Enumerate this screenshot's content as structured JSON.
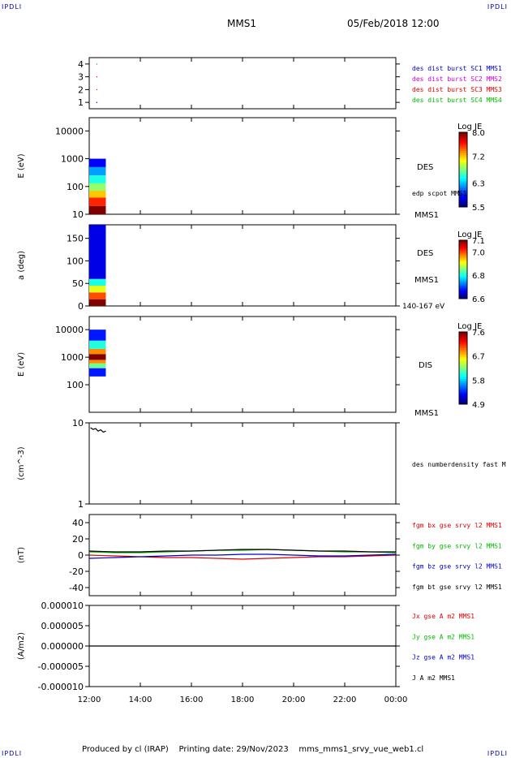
{
  "header": {
    "corner_tl": "IPDLI",
    "corner_tr": "IPDLI",
    "corner_bl": "IPDLI",
    "corner_br": "IPDLI",
    "title": "MMS1",
    "datetime": "05/Feb/2018 12:00"
  },
  "footer": {
    "produced_by": "Produced by cl (IRAP)",
    "printing_date": "Printing date: 29/Nov/2023",
    "file": "mms_mms1_srvy_vue_web1.cl"
  },
  "colors": {
    "blue": "#0000cc",
    "magenta": "#cc00cc",
    "red": "#dd0000",
    "green": "#00bb00",
    "black": "#000000"
  },
  "chart_data": {
    "type": "stacked-timeseries",
    "x_axis": {
      "ticks": [
        "12:00",
        "14:00",
        "16:00",
        "18:00",
        "20:00",
        "22:00",
        "00:00"
      ],
      "range_hours": [
        12,
        24
      ]
    },
    "panels": [
      {
        "id": "burst",
        "type": "scatter",
        "ylabel": "",
        "ylim": [
          0.5,
          4.5
        ],
        "yticks": [
          "1",
          "2",
          "3",
          "4"
        ],
        "legend": [
          {
            "label": "des dist burst SC1 MMS1",
            "color": "#0000cc"
          },
          {
            "label": "des dist burst SC2 MMS2",
            "color": "#cc00cc"
          },
          {
            "label": "des dist burst SC3 MMS3",
            "color": "#dd0000"
          },
          {
            "label": "des dist burst SC4 MMS4",
            "color": "#00bb00"
          }
        ],
        "points": [
          {
            "t": 12.28,
            "y": 4,
            "color": "#00bb00"
          },
          {
            "t": 12.28,
            "y": 3,
            "color": "#dd0000"
          },
          {
            "t": 12.28,
            "y": 2,
            "color": "#cc00cc"
          },
          {
            "t": 12.28,
            "y": 1,
            "color": "#0000cc"
          }
        ]
      },
      {
        "id": "des_energy",
        "type": "heatmap",
        "ylabel": "E (eV)",
        "yscale": "log",
        "ylim": [
          10,
          30000
        ],
        "yticks": [
          "10",
          "100",
          "1000",
          "10000"
        ],
        "instrument": "DES",
        "side_label": "edp scpot MMS1",
        "colorbar": {
          "title": "Log JE",
          "ticks": [
            "8.0",
            "7.2",
            "6.3",
            "5.5"
          ]
        },
        "data_time_range": [
          12.0,
          12.65
        ],
        "data_y_range": [
          10,
          1000
        ],
        "bands": [
          {
            "y": [
              10,
              20
            ],
            "value": 8.0
          },
          {
            "y": [
              20,
              40
            ],
            "value": 7.6
          },
          {
            "y": [
              40,
              70
            ],
            "value": 7.2
          },
          {
            "y": [
              70,
              130
            ],
            "value": 6.8
          },
          {
            "y": [
              130,
              250
            ],
            "value": 6.5
          },
          {
            "y": [
              250,
              500
            ],
            "value": 6.2
          },
          {
            "y": [
              500,
              1000
            ],
            "value": 5.8
          }
        ]
      },
      {
        "id": "des_pitch",
        "type": "heatmap",
        "ylabel": "a (deg)",
        "ylim": [
          0,
          180
        ],
        "yticks": [
          "0",
          "50",
          "100",
          "150"
        ],
        "instrument": "DES",
        "side_label": "MMS1",
        "side_label_top": "MMS1",
        "energy_label": "140-167 eV",
        "colorbar": {
          "title": "Log JE",
          "ticks": [
            "7.1",
            "7.0",
            "6.8",
            "6.6"
          ]
        },
        "data_time_range": [
          12.0,
          12.65
        ],
        "bands": [
          {
            "y": [
              0,
              15
            ],
            "value": 7.1
          },
          {
            "y": [
              15,
              30
            ],
            "value": 7.0
          },
          {
            "y": [
              30,
              45
            ],
            "value": 6.9
          },
          {
            "y": [
              45,
              60
            ],
            "value": 6.8
          },
          {
            "y": [
              60,
              180
            ],
            "value": 6.65
          }
        ]
      },
      {
        "id": "dis_energy",
        "type": "heatmap",
        "ylabel": "E (eV)",
        "yscale": "log",
        "ylim": [
          10,
          30000
        ],
        "yticks": [
          "100",
          "1000",
          "10000"
        ],
        "instrument": "DIS",
        "side_label": "MMS1",
        "colorbar": {
          "title": "Log JE",
          "ticks": [
            "7.6",
            "6.7",
            "5.8",
            "4.9"
          ]
        },
        "data_time_range": [
          12.0,
          12.65
        ],
        "data_y_range": [
          200,
          10000
        ],
        "bands": [
          {
            "y": [
              200,
              400
            ],
            "value": 5.3
          },
          {
            "y": [
              400,
              600
            ],
            "value": 6.2
          },
          {
            "y": [
              600,
              800
            ],
            "value": 6.9
          },
          {
            "y": [
              800,
              1300
            ],
            "value": 7.6
          },
          {
            "y": [
              1300,
              2000
            ],
            "value": 6.9
          },
          {
            "y": [
              2000,
              4000
            ],
            "value": 6.0
          },
          {
            "y": [
              4000,
              10000
            ],
            "value": 5.3
          }
        ]
      },
      {
        "id": "density",
        "type": "line",
        "ylabel": "(cm^-3)",
        "yscale": "log",
        "ylim": [
          1,
          10
        ],
        "yticks": [
          "1",
          "10"
        ],
        "legend": [
          {
            "label": "des numberdensity fast M",
            "color": "#000000"
          }
        ],
        "series": [
          {
            "x": [
              12.05,
              12.15,
              12.25,
              12.35,
              12.45,
              12.55,
              12.65
            ],
            "y": [
              8.7,
              8.3,
              8.5,
              7.9,
              8.2,
              7.7,
              7.9
            ],
            "color": "#000000"
          }
        ]
      },
      {
        "id": "fgm",
        "type": "line",
        "ylabel": "(nT)",
        "ylim": [
          -50,
          50
        ],
        "yticks": [
          "-40",
          "-20",
          "0",
          "20",
          "40"
        ],
        "legend": [
          {
            "label": "fgm bx gse srvy l2 MMS1",
            "color": "#dd0000"
          },
          {
            "label": "fgm by gse srvy l2 MMS1",
            "color": "#00bb00"
          },
          {
            "label": "fgm bz gse srvy l2 MMS1",
            "color": "#0000cc"
          },
          {
            "label": "fgm bt gse srvy l2 MMS1",
            "color": "#000000"
          }
        ],
        "series": [
          {
            "name": "fgm bx gse srvy l2 MMS1",
            "color": "#dd0000",
            "x": [
              12,
              13,
              14,
              15,
              16,
              17,
              18,
              19,
              20,
              21,
              22,
              23,
              24
            ],
            "y": [
              0,
              -1,
              -2,
              -3,
              -3,
              -4,
              -5,
              -4,
              -3,
              -2,
              -2,
              -1,
              0
            ]
          },
          {
            "name": "fgm by gse srvy l2 MMS1",
            "color": "#00bb00",
            "x": [
              12,
              13,
              14,
              15,
              16,
              17,
              18,
              19,
              20,
              21,
              22,
              23,
              24
            ],
            "y": [
              4,
              3,
              3,
              4,
              5,
              6,
              6,
              7,
              6,
              5,
              4,
              4,
              3
            ]
          },
          {
            "name": "fgm bz gse srvy l2 MMS1",
            "color": "#0000cc",
            "x": [
              12,
              13,
              14,
              15,
              16,
              17,
              18,
              19,
              20,
              21,
              22,
              23,
              24
            ],
            "y": [
              -4,
              -3,
              -2,
              -1,
              0,
              0,
              1,
              1,
              0,
              -1,
              -1,
              0,
              1
            ]
          },
          {
            "name": "fgm bt gse srvy l2 MMS1",
            "color": "#000000",
            "x": [
              12,
              13,
              14,
              15,
              16,
              17,
              18,
              19,
              20,
              21,
              22,
              23,
              24
            ],
            "y": [
              5,
              4,
              4,
              5,
              5,
              6,
              7,
              7,
              6,
              5,
              5,
              4,
              4
            ]
          }
        ]
      },
      {
        "id": "current",
        "type": "line",
        "ylabel": "(A/m2)",
        "ylim": [
          -1e-05,
          1e-05
        ],
        "yticks": [
          "-0.000010",
          "-0.000005",
          "0.000000",
          "0.000005",
          "0.000010"
        ],
        "legend": [
          {
            "label": "Jx gse A m2 MMS1",
            "color": "#dd0000"
          },
          {
            "label": "Jy gse A m2 MMS1",
            "color": "#00bb00"
          },
          {
            "label": "Jz gse A m2 MMS1",
            "color": "#0000cc"
          },
          {
            "label": "J A m2 MMS1",
            "color": "#000000"
          }
        ],
        "series": [
          {
            "name": "J A m2 MMS1",
            "color": "#000000",
            "x": [
              12,
              24
            ],
            "y": [
              0,
              0
            ]
          }
        ]
      }
    ]
  }
}
